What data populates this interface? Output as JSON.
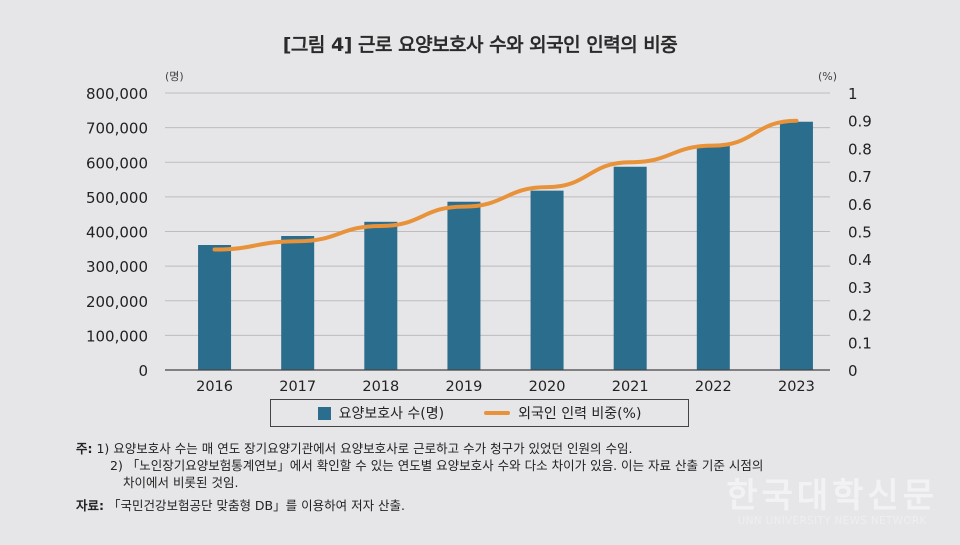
{
  "title": "[그림 4] 근로 요양보호사 수와 외국인 인력의 비중",
  "chart_data": {
    "type": "bar",
    "title": "[그림 4] 근로 요양보호사 수와 외국인 인력의 비중",
    "categories": [
      "2016",
      "2017",
      "2018",
      "2019",
      "2020",
      "2021",
      "2022",
      "2023"
    ],
    "series": [
      {
        "name": "요양보호사 수(명)",
        "type": "bar",
        "axis": "left",
        "color": "#2b6d8c",
        "values": [
          361000,
          387000,
          428000,
          486000,
          518000,
          587000,
          650000,
          717000
        ]
      },
      {
        "name": "외국인 인력 비중(%)",
        "type": "line",
        "axis": "right",
        "color": "#e8923a",
        "values": [
          0.435,
          0.465,
          0.52,
          0.59,
          0.66,
          0.75,
          0.81,
          0.9
        ]
      }
    ],
    "y_left": {
      "unit_label": "(명)",
      "ylim": [
        0,
        800000
      ],
      "ticks": [
        "0",
        "100,000",
        "200,000",
        "300,000",
        "400,000",
        "500,000",
        "600,000",
        "700,000",
        "800,000"
      ]
    },
    "y_right": {
      "unit_label": "(%)",
      "ylim": [
        0,
        1
      ],
      "ticks": [
        "0",
        "0.1",
        "0.2",
        "0.3",
        "0.4",
        "0.5",
        "0.6",
        "0.7",
        "0.8",
        "0.9",
        "1"
      ]
    },
    "xlabel": "",
    "grid": true,
    "legend_position": "bottom"
  },
  "legend": {
    "bar_label": "요양보호사 수(명)",
    "line_label": "외국인 인력 비중(%)"
  },
  "notes": {
    "label": "주:",
    "line1": "1) 요양보호사 수는 매 연도 장기요양기관에서 요양보호사로 근로하고 수가 청구가 있었던 인원의 수임.",
    "line2": "2) 「노인장기요양보험통계연보」에서 확인할 수 있는 연도별 요양보호사 수와 다소 차이가 있음. 이는 자료 산출 기준 시점의",
    "line3": "차이에서 비롯된 것임."
  },
  "source": {
    "label": "자료:",
    "text": "「국민건강보험공단 맞춤형 DB」를 이용하여 저자 산출."
  },
  "watermark": {
    "main": "한국대학신문",
    "sub": "UNN UNIVERSITY NEWS NETWORK"
  }
}
